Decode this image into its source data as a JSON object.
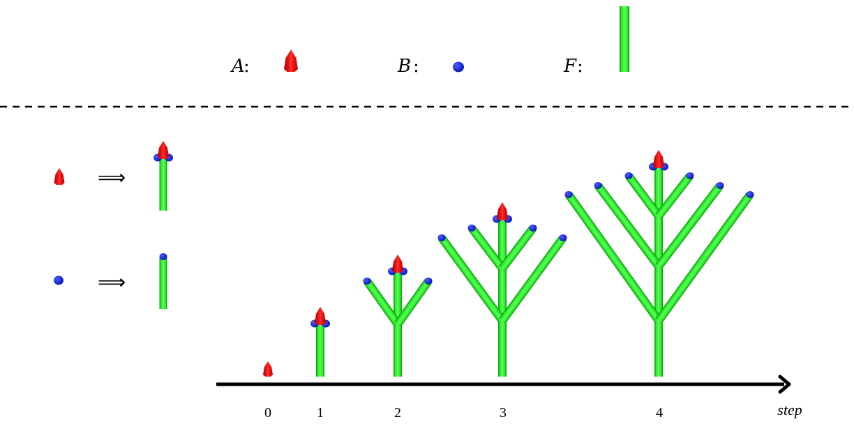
{
  "legend": {
    "items": [
      {
        "symbol": "A",
        "colon": ":",
        "glyph": "apex-red",
        "color": "#e60000"
      },
      {
        "symbol": "B",
        "colon": ":",
        "glyph": "bud-blue",
        "color": "#0a1adf"
      },
      {
        "symbol": "F",
        "colon": ":",
        "glyph": "segment-green",
        "color": "#22e622"
      }
    ]
  },
  "rules": {
    "arrow": "⟹",
    "items": [
      {
        "lhs": "A",
        "rhs": "F[+B][-B]A"
      },
      {
        "lhs": "B",
        "rhs": "FB"
      }
    ]
  },
  "timeline": {
    "axis_label": "step",
    "ticks": [
      "0",
      "1",
      "2",
      "3",
      "4"
    ]
  },
  "colors": {
    "stem": "#22e622",
    "stem_dark": "#13b813",
    "apex": "#e60000",
    "bud": "#0a1adf",
    "axis": "#000000"
  }
}
